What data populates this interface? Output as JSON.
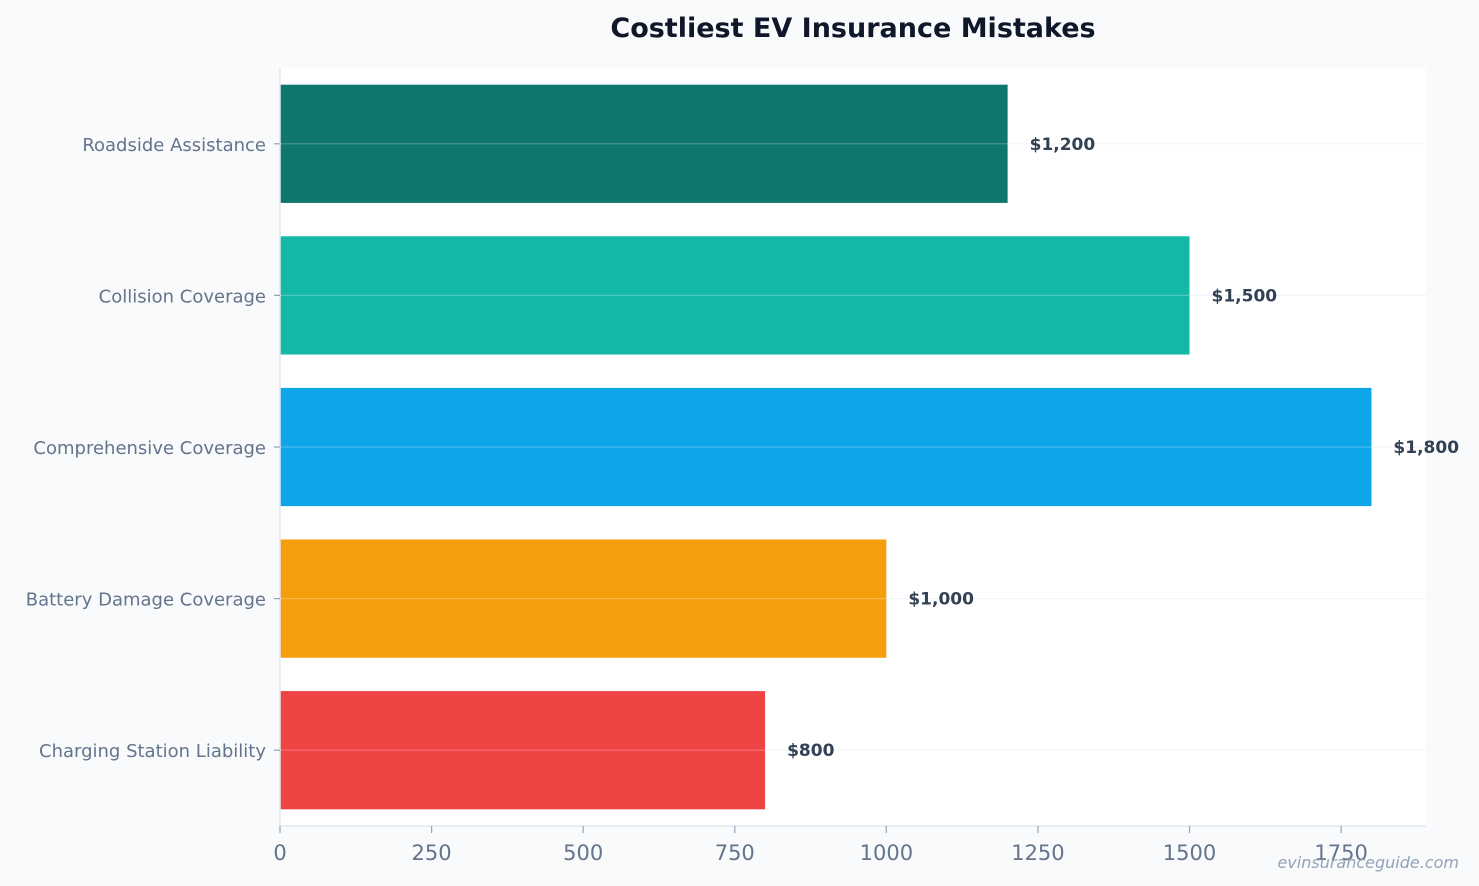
{
  "chart_data": {
    "type": "bar",
    "orientation": "horizontal",
    "title": "Costliest EV Insurance Mistakes",
    "xlabel": "",
    "ylabel": "",
    "categories": [
      "Roadside Assistance",
      "Collision Coverage",
      "Comprehensive Coverage",
      "Battery Damage Coverage",
      "Charging Station Liability"
    ],
    "values": [
      1200,
      1500,
      1800,
      1000,
      800
    ],
    "value_labels": [
      "$1,200",
      "$1,500",
      "$1,800",
      "$1,000",
      "$800"
    ],
    "colors": [
      "#0f766e",
      "#14b8a6",
      "#0ea5e9",
      "#f59e0b",
      "#ef4444"
    ],
    "xlim": [
      0,
      1890
    ],
    "xticks": [
      0,
      250,
      500,
      750,
      1000,
      1250,
      1500,
      1750
    ],
    "xtick_labels": [
      "0",
      "250",
      "500",
      "750",
      "1000",
      "1250",
      "1500",
      "1750"
    ],
    "grid": true,
    "legend": "none"
  },
  "watermark": "evinsuranceguide.com"
}
